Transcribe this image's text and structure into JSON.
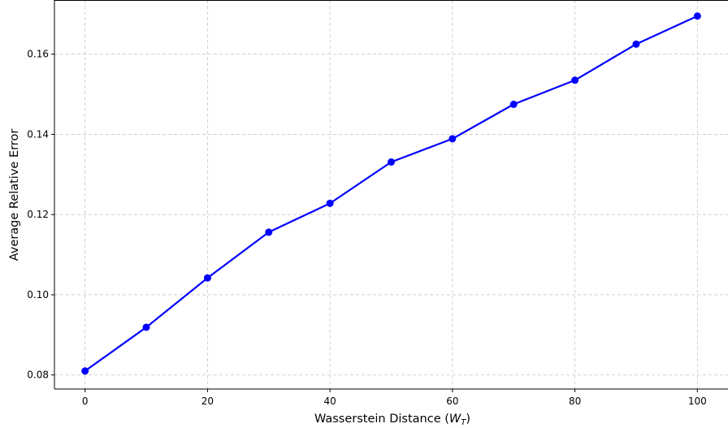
{
  "chart_data": {
    "type": "line",
    "title": "",
    "xlabel": "Wasserstein Distance (",
    "xlabel_var": "W",
    "xlabel_sub": "T",
    "xlabel_close": ")",
    "ylabel": "Average Relative Error",
    "xlim": [
      -5,
      105
    ],
    "ylim": [
      0.0765,
      0.1735
    ],
    "xticks": [
      0,
      20,
      40,
      60,
      80,
      100
    ],
    "xtick_labels": [
      "0",
      "20",
      "40",
      "60",
      "80",
      "100"
    ],
    "yticks": [
      0.08,
      0.1,
      0.12,
      0.14,
      0.16
    ],
    "ytick_labels": [
      "0.08",
      "0.10",
      "0.12",
      "0.14",
      "0.16"
    ],
    "grid": true,
    "series": [
      {
        "color": "#0000ff",
        "marker": "circle",
        "x": [
          0,
          10,
          20,
          30,
          40,
          50,
          60,
          70,
          80,
          90,
          100
        ],
        "y": [
          0.081,
          0.0919,
          0.1042,
          0.1156,
          0.1228,
          0.1331,
          0.1389,
          0.1475,
          0.1535,
          0.1625,
          0.1695
        ]
      }
    ]
  }
}
